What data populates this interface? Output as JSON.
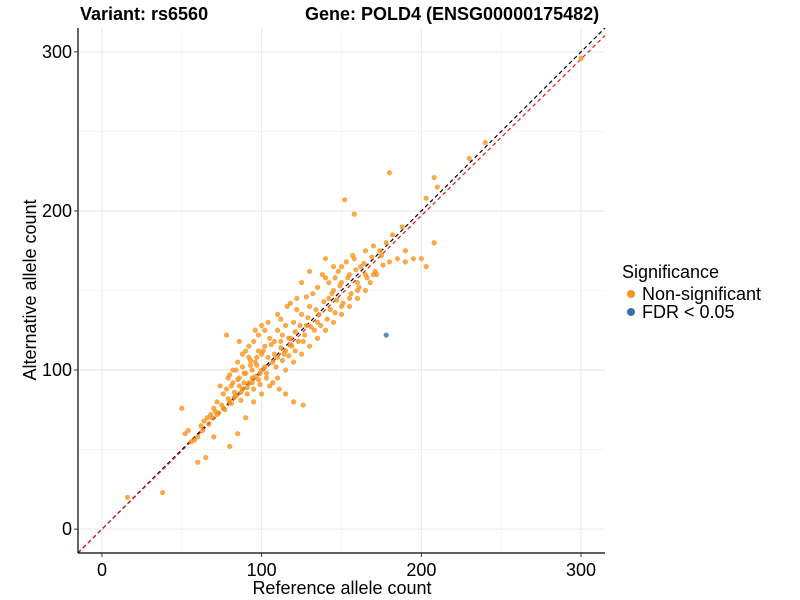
{
  "title_left": "Variant: rs6560",
  "title_right": "Gene: POLD4 (ENSG00000175482)",
  "chart_data": {
    "type": "scatter",
    "xlabel": "Reference allele count",
    "ylabel": "Alternative allele count",
    "xlim": [
      -15,
      315
    ],
    "ylim": [
      -15,
      315
    ],
    "xticks": [
      0,
      100,
      200,
      300
    ],
    "yticks": [
      0,
      100,
      200,
      300
    ],
    "grid": true,
    "legend": {
      "title": "Significance",
      "position": "right",
      "entries": [
        {
          "label": "Non-significant",
          "color": "#F7941D"
        },
        {
          "label": "FDR < 0.05",
          "color": "#3C6EA8"
        }
      ]
    },
    "reference_lines": [
      {
        "slope": 1.0,
        "intercept": 0,
        "color": "#000000",
        "style": "dashed"
      },
      {
        "slope": 0.985,
        "intercept": 0,
        "color": "#E31A1C",
        "style": "dashed"
      }
    ],
    "series": [
      {
        "name": "Non-significant",
        "color": "#F7941D",
        "points": [
          [
            16,
            20
          ],
          [
            38,
            23
          ],
          [
            300,
            296
          ],
          [
            240,
            243
          ],
          [
            230,
            233
          ],
          [
            208,
            221
          ],
          [
            210,
            215
          ],
          [
            203,
            208
          ],
          [
            208,
            180
          ],
          [
            203,
            165
          ],
          [
            195,
            170
          ],
          [
            200,
            170
          ],
          [
            190,
            168
          ],
          [
            180,
            224
          ],
          [
            152,
            207
          ],
          [
            158,
            198
          ],
          [
            165,
            175
          ],
          [
            170,
            178
          ],
          [
            175,
            172
          ],
          [
            180,
            168
          ],
          [
            185,
            170
          ],
          [
            178,
            180
          ],
          [
            182,
            185
          ],
          [
            188,
            190
          ],
          [
            190,
            175
          ],
          [
            172,
            160
          ],
          [
            168,
            155
          ],
          [
            160,
            150
          ],
          [
            162,
            165
          ],
          [
            158,
            170
          ],
          [
            155,
            160
          ],
          [
            150,
            155
          ],
          [
            148,
            162
          ],
          [
            145,
            150
          ],
          [
            142,
            145
          ],
          [
            140,
            158
          ],
          [
            138,
            160
          ],
          [
            135,
            152
          ],
          [
            132,
            148
          ],
          [
            130,
            140
          ],
          [
            128,
            146
          ],
          [
            125,
            135
          ],
          [
            122,
            138
          ],
          [
            120,
            130
          ],
          [
            118,
            142
          ],
          [
            115,
            128
          ],
          [
            112,
            132
          ],
          [
            110,
            125
          ],
          [
            108,
            118
          ],
          [
            105,
            120
          ],
          [
            102,
            115
          ],
          [
            100,
            110
          ],
          [
            98,
            112
          ],
          [
            96,
            105
          ],
          [
            94,
            100
          ],
          [
            92,
            108
          ],
          [
            90,
            98
          ],
          [
            88,
            102
          ],
          [
            86,
            95
          ],
          [
            84,
            100
          ],
          [
            82,
            92
          ],
          [
            80,
            97
          ],
          [
            78,
            88
          ],
          [
            76,
            85
          ],
          [
            74,
            90
          ],
          [
            72,
            80
          ],
          [
            70,
            76
          ],
          [
            68,
            72
          ],
          [
            66,
            70
          ],
          [
            64,
            68
          ],
          [
            62,
            65
          ],
          [
            60,
            58
          ],
          [
            58,
            56
          ],
          [
            56,
            55
          ],
          [
            54,
            62
          ],
          [
            52,
            60
          ],
          [
            50,
            76
          ],
          [
            60,
            42
          ],
          [
            65,
            45
          ],
          [
            70,
            58
          ],
          [
            80,
            52
          ],
          [
            85,
            60
          ],
          [
            90,
            70
          ],
          [
            95,
            80
          ],
          [
            100,
            85
          ],
          [
            105,
            90
          ],
          [
            110,
            95
          ],
          [
            115,
            100
          ],
          [
            120,
            105
          ],
          [
            125,
            110
          ],
          [
            130,
            115
          ],
          [
            135,
            120
          ],
          [
            140,
            125
          ],
          [
            145,
            130
          ],
          [
            150,
            135
          ],
          [
            155,
            140
          ],
          [
            160,
            145
          ],
          [
            165,
            150
          ],
          [
            170,
            160
          ],
          [
            140,
            170
          ],
          [
            145,
            165
          ],
          [
            130,
            162
          ],
          [
            125,
            155
          ],
          [
            150,
            140
          ],
          [
            155,
            145
          ],
          [
            160,
            155
          ],
          [
            165,
            160
          ],
          [
            135,
            130
          ],
          [
            128,
            128
          ],
          [
            118,
            120
          ],
          [
            112,
            118
          ],
          [
            108,
            110
          ],
          [
            104,
            108
          ],
          [
            100,
            100
          ],
          [
            96,
            96
          ],
          [
            92,
            92
          ],
          [
            88,
            88
          ],
          [
            84,
            84
          ],
          [
            80,
            80
          ],
          [
            76,
            76
          ],
          [
            72,
            72
          ],
          [
            88,
            110
          ],
          [
            92,
            115
          ],
          [
            95,
            118
          ],
          [
            98,
            122
          ],
          [
            102,
            125
          ],
          [
            85,
            105
          ],
          [
            82,
            100
          ],
          [
            79,
            95
          ],
          [
            78,
            122
          ],
          [
            86,
            118
          ],
          [
            90,
            112
          ],
          [
            93,
            106
          ],
          [
            97,
            103
          ],
          [
            99,
            98
          ],
          [
            103,
            95
          ],
          [
            107,
            92
          ],
          [
            111,
            88
          ],
          [
            115,
            85
          ],
          [
            120,
            80
          ],
          [
            126,
            78
          ],
          [
            94,
            92
          ],
          [
            91,
            89
          ],
          [
            87,
            86
          ],
          [
            83,
            83
          ],
          [
            81,
            79
          ],
          [
            77,
            75
          ],
          [
            73,
            73
          ],
          [
            69,
            70
          ],
          [
            67,
            66
          ],
          [
            63,
            62
          ],
          [
            115,
            112
          ],
          [
            119,
            115
          ],
          [
            123,
            118
          ],
          [
            127,
            122
          ],
          [
            133,
            125
          ],
          [
            137,
            128
          ],
          [
            141,
            132
          ],
          [
            146,
            136
          ],
          [
            151,
            142
          ],
          [
            156,
            148
          ],
          [
            161,
            152
          ],
          [
            166,
            158
          ],
          [
            171,
            162
          ],
          [
            176,
            166
          ],
          [
            174,
            175
          ],
          [
            169,
            171
          ],
          [
            164,
            167
          ],
          [
            159,
            163
          ],
          [
            154,
            158
          ],
          [
            149,
            153
          ],
          [
            144,
            148
          ],
          [
            139,
            143
          ],
          [
            134,
            138
          ],
          [
            129,
            133
          ],
          [
            124,
            128
          ],
          [
            113,
            122
          ],
          [
            106,
            116
          ],
          [
            101,
            112
          ],
          [
            97,
            108
          ],
          [
            93,
            103
          ],
          [
            89,
            98
          ],
          [
            85,
            94
          ],
          [
            81,
            90
          ],
          [
            87,
            81
          ],
          [
            91,
            85
          ],
          [
            95,
            88
          ],
          [
            99,
            91
          ],
          [
            103,
            98
          ],
          [
            109,
            102
          ],
          [
            113,
            106
          ],
          [
            117,
            109
          ],
          [
            121,
            112
          ],
          [
            104,
            130
          ],
          [
            100,
            128
          ],
          [
            96,
            125
          ],
          [
            110,
            135
          ],
          [
            116,
            140
          ],
          [
            122,
            145
          ],
          [
            142,
            155
          ],
          [
            146,
            158
          ],
          [
            150,
            165
          ],
          [
            153,
            168
          ],
          [
            157,
            172
          ],
          [
            147,
            144
          ],
          [
            143,
            138
          ],
          [
            136,
            135
          ],
          [
            131,
            127
          ],
          [
            126,
            118
          ],
          [
            121,
            124
          ],
          [
            117,
            120
          ],
          [
            112,
            114
          ],
          [
            107,
            105
          ],
          [
            102,
            102
          ],
          [
            98,
            94
          ],
          [
            94,
            95
          ],
          [
            89,
            92
          ],
          [
            86,
            90
          ],
          [
            83,
            86
          ],
          [
            79,
            82
          ],
          [
            75,
            78
          ],
          [
            71,
            74
          ],
          [
            110,
            108
          ],
          [
            114,
            110
          ],
          [
            118,
            116
          ]
        ]
      },
      {
        "name": "FDR < 0.05",
        "color": "#3C6EA8",
        "points": [
          [
            178,
            122
          ]
        ]
      }
    ]
  }
}
